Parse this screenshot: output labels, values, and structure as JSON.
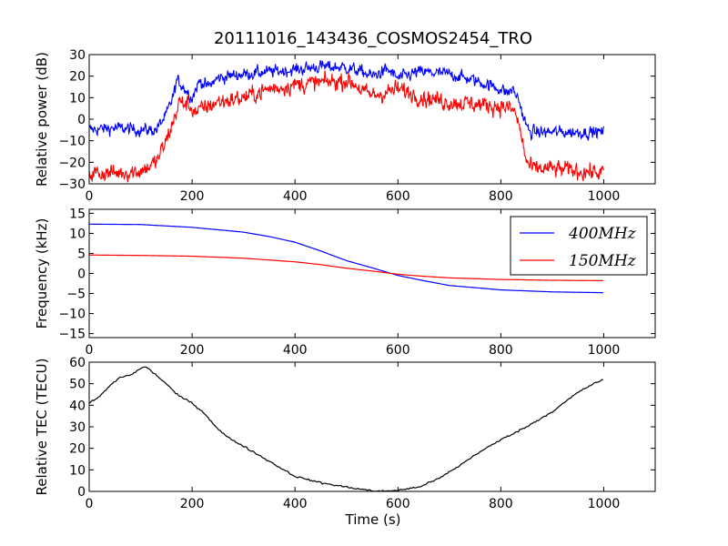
{
  "figure": {
    "title": "20111016_143436_COSMOS2454_TRO",
    "xlabel": "Time (s)"
  },
  "chart_data": [
    {
      "type": "line",
      "ylabel": "Relative power (dB)",
      "xlim": [
        0,
        1100
      ],
      "ylim": [
        -30,
        30
      ],
      "xticks": [
        0,
        200,
        400,
        600,
        800,
        1000
      ],
      "yticks": [
        -30,
        -20,
        -10,
        0,
        10,
        20,
        30
      ],
      "grid": false,
      "series": [
        {
          "color": "#0000ff",
          "noise": 2.5,
          "x": [
            0,
            50,
            100,
            130,
            150,
            165,
            170,
            180,
            200,
            215,
            230,
            250,
            270,
            300,
            350,
            400,
            450,
            500,
            530,
            550,
            580,
            600,
            640,
            700,
            750,
            800,
            815,
            820,
            825,
            835,
            845,
            855,
            870,
            900,
            950,
            1000
          ],
          "values": [
            -5,
            -4,
            -5,
            -5,
            2,
            12,
            18,
            16,
            10,
            18,
            15,
            19,
            20,
            21,
            22,
            23,
            24.5,
            24,
            22,
            20,
            23,
            19,
            22,
            21,
            18,
            14,
            12,
            14,
            13,
            9,
            0,
            -6,
            -6,
            -6,
            -6,
            -6
          ]
        },
        {
          "color": "#ff0000",
          "noise": 3.5,
          "x": [
            0,
            50,
            100,
            130,
            150,
            165,
            175,
            190,
            210,
            220,
            250,
            300,
            350,
            400,
            450,
            500,
            520,
            530,
            550,
            570,
            600,
            650,
            700,
            750,
            800,
            820,
            830,
            840,
            850,
            860,
            900,
            950,
            1000
          ],
          "values": [
            -25,
            -25,
            -24,
            -20,
            -10,
            0,
            8,
            7,
            3,
            5,
            8,
            10,
            14,
            16,
            17,
            18,
            16,
            13,
            11,
            12,
            14,
            10,
            8,
            7,
            6,
            5,
            2,
            -8,
            -20,
            -23,
            -23,
            -24,
            -25
          ]
        }
      ]
    },
    {
      "type": "line",
      "ylabel": "Frequency (kHz)",
      "xlim": [
        0,
        1100
      ],
      "ylim": [
        -16,
        16
      ],
      "xticks": [
        0,
        200,
        400,
        600,
        800,
        1000
      ],
      "yticks": [
        -15,
        -10,
        -5,
        0,
        5,
        10,
        15
      ],
      "grid": false,
      "legend_position": "top-right",
      "series": [
        {
          "name": "400MHz",
          "color": "#0000ff",
          "x": [
            0,
            100,
            200,
            300,
            350,
            400,
            450,
            500,
            550,
            600,
            650,
            700,
            800,
            900,
            1000
          ],
          "values": [
            12.3,
            12.2,
            11.5,
            10.3,
            9.2,
            7.8,
            5.6,
            3.2,
            1.4,
            -0.5,
            -1.8,
            -3,
            -4.1,
            -4.6,
            -4.8
          ]
        },
        {
          "name": "150MHz",
          "color": "#ff0000",
          "x": [
            0,
            100,
            200,
            300,
            400,
            450,
            500,
            550,
            600,
            650,
            700,
            800,
            900,
            1000
          ],
          "values": [
            4.6,
            4.5,
            4.3,
            3.8,
            2.9,
            2.2,
            1.3,
            0.6,
            -0.2,
            -0.7,
            -1.1,
            -1.5,
            -1.7,
            -1.8
          ]
        }
      ]
    },
    {
      "type": "line",
      "ylabel": "Relative TEC (TECU)",
      "xlabel": "Time (s)",
      "xlim": [
        0,
        1100
      ],
      "ylim": [
        0,
        60
      ],
      "xticks": [
        0,
        200,
        400,
        600,
        800,
        1000
      ],
      "yticks": [
        0,
        10,
        20,
        30,
        40,
        50,
        60
      ],
      "grid": false,
      "series": [
        {
          "color": "#000000",
          "x": [
            0,
            20,
            40,
            60,
            80,
            100,
            110,
            120,
            150,
            170,
            200,
            225,
            250,
            270,
            300,
            350,
            400,
            450,
            500,
            530,
            560,
            600,
            640,
            680,
            720,
            750,
            800,
            850,
            900,
            950,
            980,
            1000
          ],
          "values": [
            41,
            44,
            49,
            53,
            54,
            57,
            58,
            56,
            50,
            45,
            41,
            36,
            29,
            25,
            21,
            14,
            7,
            4,
            2,
            1,
            0,
            0.5,
            2,
            6,
            12,
            17,
            24,
            30,
            37,
            46,
            50,
            52
          ]
        }
      ]
    }
  ]
}
